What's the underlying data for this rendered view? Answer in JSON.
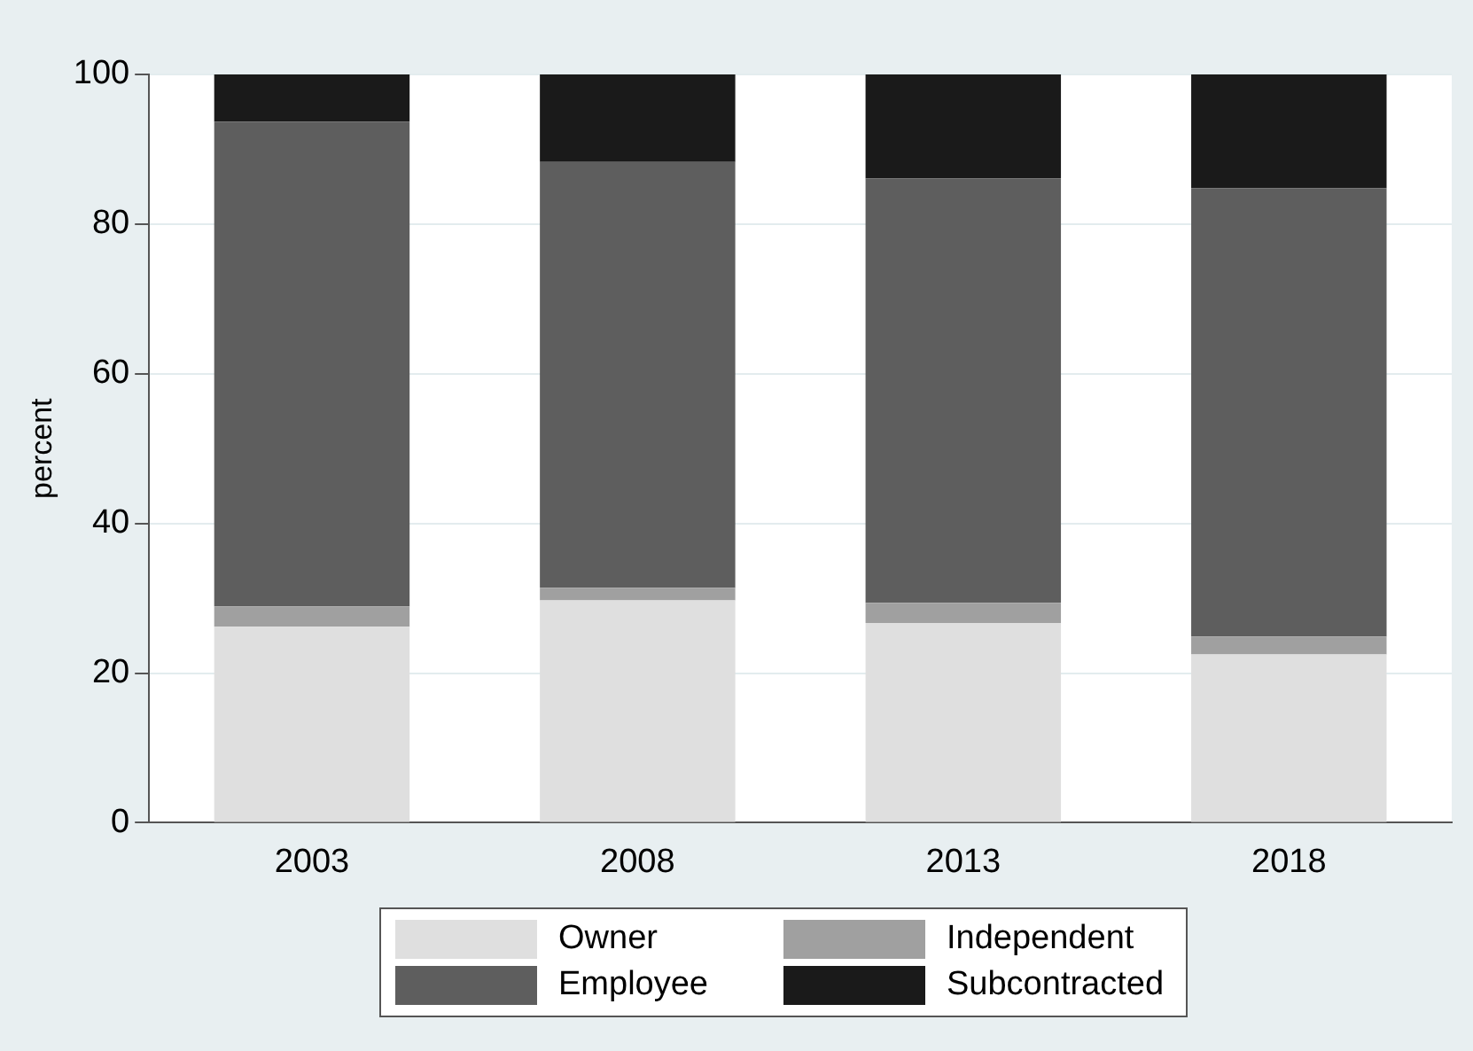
{
  "chart_data": {
    "type": "bar",
    "stacked": true,
    "ylabel": "percent",
    "categories": [
      "2003",
      "2008",
      "2013",
      "2018"
    ],
    "series": [
      {
        "name": "Owner",
        "color": "#dfdfdf",
        "values": [
          26.2,
          29.7,
          26.7,
          22.5
        ]
      },
      {
        "name": "Independent",
        "color": "#a0a0a0",
        "values": [
          2.7,
          1.7,
          2.7,
          2.4
        ]
      },
      {
        "name": "Employee",
        "color": "#5e5e5e",
        "values": [
          64.8,
          56.9,
          56.7,
          59.9
        ]
      },
      {
        "name": "Subcontracted",
        "color": "#1a1a1a",
        "values": [
          6.3,
          11.7,
          13.9,
          15.2
        ]
      }
    ],
    "ylim": [
      0,
      100
    ],
    "yticks": [
      0,
      20,
      40,
      60,
      80,
      100
    ],
    "grid": "y",
    "legend": "bottom"
  }
}
